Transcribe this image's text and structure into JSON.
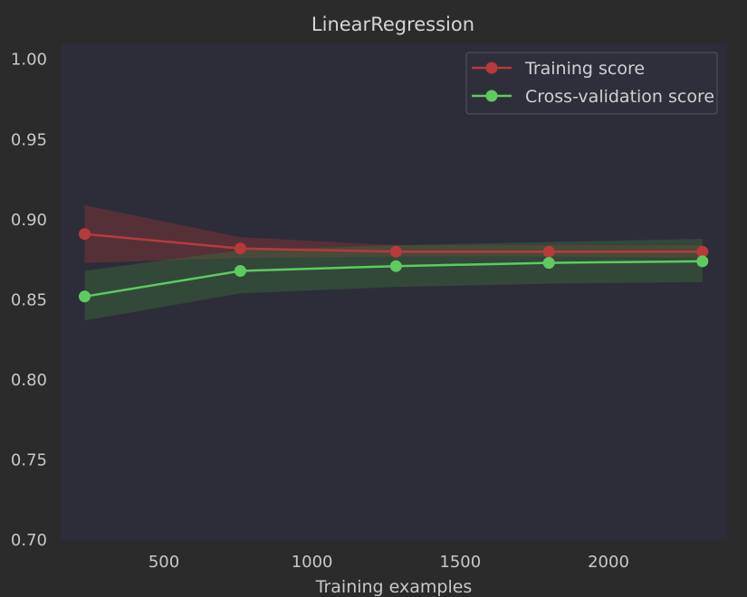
{
  "chart_data": {
    "type": "line",
    "title": "LinearRegression",
    "xlabel": "Training examples",
    "ylabel": "",
    "xlim": [
      155,
      2400
    ],
    "ylim": [
      0.7,
      1.01
    ],
    "x_ticks": [
      500,
      1000,
      1500,
      2000
    ],
    "x_tick_labels": [
      "500",
      "1000",
      "1500",
      "2000"
    ],
    "y_ticks": [
      0.7,
      0.75,
      0.8,
      0.85,
      0.9,
      0.95,
      1.0
    ],
    "y_tick_labels": [
      "0.70",
      "0.75",
      "0.80",
      "0.85",
      "0.90",
      "0.95",
      "1.00"
    ],
    "grid": false,
    "legend_position": "top-right",
    "x": [
      233,
      758,
      1283,
      1799,
      2317
    ],
    "series": [
      {
        "name": "Training score",
        "color": "#b83a3a",
        "fill_color": "#8a3535",
        "values": [
          0.891,
          0.882,
          0.88,
          0.88,
          0.88
        ],
        "lower": [
          0.873,
          0.876,
          0.877,
          0.877,
          0.876
        ],
        "upper": [
          0.909,
          0.889,
          0.884,
          0.884,
          0.884
        ]
      },
      {
        "name": "Cross-validation score",
        "color": "#5ecb5e",
        "fill_color": "#3a6a3a",
        "values": [
          0.852,
          0.868,
          0.871,
          0.873,
          0.874
        ],
        "lower": [
          0.837,
          0.854,
          0.858,
          0.86,
          0.861
        ],
        "upper": [
          0.868,
          0.881,
          0.884,
          0.886,
          0.888
        ]
      }
    ]
  },
  "colors": {
    "background": "#2b2b2b",
    "plot_area": "#2d2d3a",
    "text": "#c8c8c8"
  }
}
